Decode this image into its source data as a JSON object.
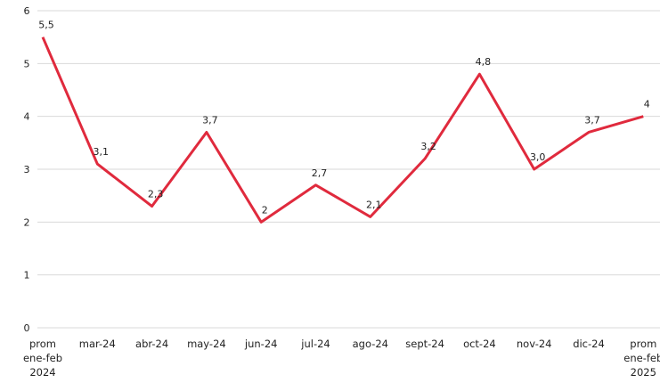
{
  "chart_data": {
    "type": "line",
    "categories": [
      "prom\nene-feb\n2024",
      "mar-24",
      "abr-24",
      "may-24",
      "jun-24",
      "jul-24",
      "ago-24",
      "sept-24",
      "oct-24",
      "nov-24",
      "dic-24",
      "prom\nene-feb\n2025"
    ],
    "series": [
      {
        "name": "",
        "color": "#e02a3d",
        "values": [
          5.5,
          3.1,
          2.3,
          3.7,
          2.0,
          2.7,
          2.1,
          3.2,
          4.8,
          3.0,
          3.7,
          4.0
        ],
        "value_labels": [
          "5,5",
          "3,1",
          "2,3",
          "3,7",
          "2",
          "2,7",
          "2,1",
          "3,2",
          "4,8",
          "3,0",
          "3,7",
          "4"
        ]
      }
    ],
    "ylim": [
      0,
      6
    ],
    "yticks": [
      0,
      1,
      2,
      3,
      4,
      5,
      6
    ],
    "grid": true
  }
}
